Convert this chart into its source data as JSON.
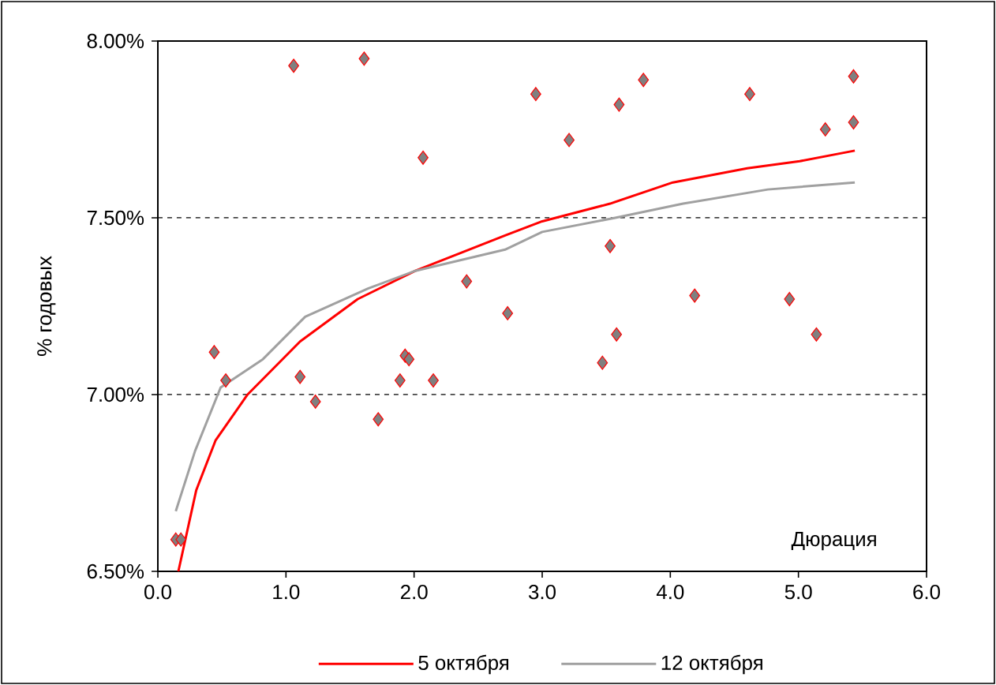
{
  "chart_data": {
    "type": "scatter",
    "xlabel": "Дюрация",
    "ylabel": "% годовых",
    "xlim": [
      0,
      6
    ],
    "xticks": [
      {
        "value": 0,
        "label": "0.0"
      },
      {
        "value": 1,
        "label": "1.0"
      },
      {
        "value": 2,
        "label": "2.0"
      },
      {
        "value": 3,
        "label": "3.0"
      },
      {
        "value": 4,
        "label": "4.0"
      },
      {
        "value": 5,
        "label": "5.0"
      },
      {
        "value": 6,
        "label": "6.0"
      }
    ],
    "ylim": [
      6.5,
      8
    ],
    "yticks": [
      {
        "value": 6.5,
        "label": "6.50%"
      },
      {
        "value": 7,
        "label": "7.00%"
      },
      {
        "value": 7.5,
        "label": "7.50%"
      },
      {
        "value": 8,
        "label": "8.00%"
      }
    ],
    "grid": "y",
    "legend": "bottom",
    "series": [
      {
        "marker": "diamond",
        "color": "#808080",
        "x": [
          0.14,
          0.18,
          0.44,
          0.53,
          1.06,
          1.11,
          1.23,
          1.61,
          1.72,
          1.89,
          1.93,
          1.96,
          2.07,
          2.15,
          2.41,
          2.73,
          2.95,
          3.21,
          3.47,
          3.53,
          3.58,
          3.6,
          3.79,
          4.19,
          4.62,
          4.93,
          5.14,
          5.21,
          5.43,
          5.43
        ],
        "values": [
          6.59,
          6.59,
          7.12,
          7.04,
          7.93,
          7.05,
          6.98,
          7.95,
          6.93,
          7.04,
          7.11,
          7.1,
          7.67,
          7.04,
          7.32,
          7.23,
          7.85,
          7.72,
          7.09,
          7.42,
          7.17,
          7.82,
          7.89,
          7.28,
          7.85,
          7.27,
          7.17,
          7.75,
          7.9,
          7.77
        ]
      },
      {
        "type": "line",
        "name": "5 октября",
        "color": "#ff0000",
        "line_style": "solid",
        "x": [
          0.16,
          0.3,
          0.45,
          0.7,
          1.11,
          1.56,
          2.01,
          2.71,
          3.0,
          3.53,
          4.02,
          4.6,
          5.01,
          5.44
        ],
        "values": [
          6.5,
          6.73,
          6.87,
          7.0,
          7.15,
          7.27,
          7.35,
          7.45,
          7.49,
          7.54,
          7.6,
          7.64,
          7.66,
          7.69
        ]
      },
      {
        "type": "line",
        "name": "12 октября",
        "color": "#a0a0a0",
        "line_style": "solid",
        "x": [
          0.14,
          0.29,
          0.49,
          0.82,
          1.15,
          1.64,
          2.01,
          2.71,
          3.0,
          3.57,
          4.1,
          4.76,
          5.44
        ],
        "values": [
          6.67,
          6.84,
          7.02,
          7.1,
          7.22,
          7.3,
          7.35,
          7.41,
          7.46,
          7.5,
          7.54,
          7.58,
          7.6
        ]
      }
    ]
  }
}
